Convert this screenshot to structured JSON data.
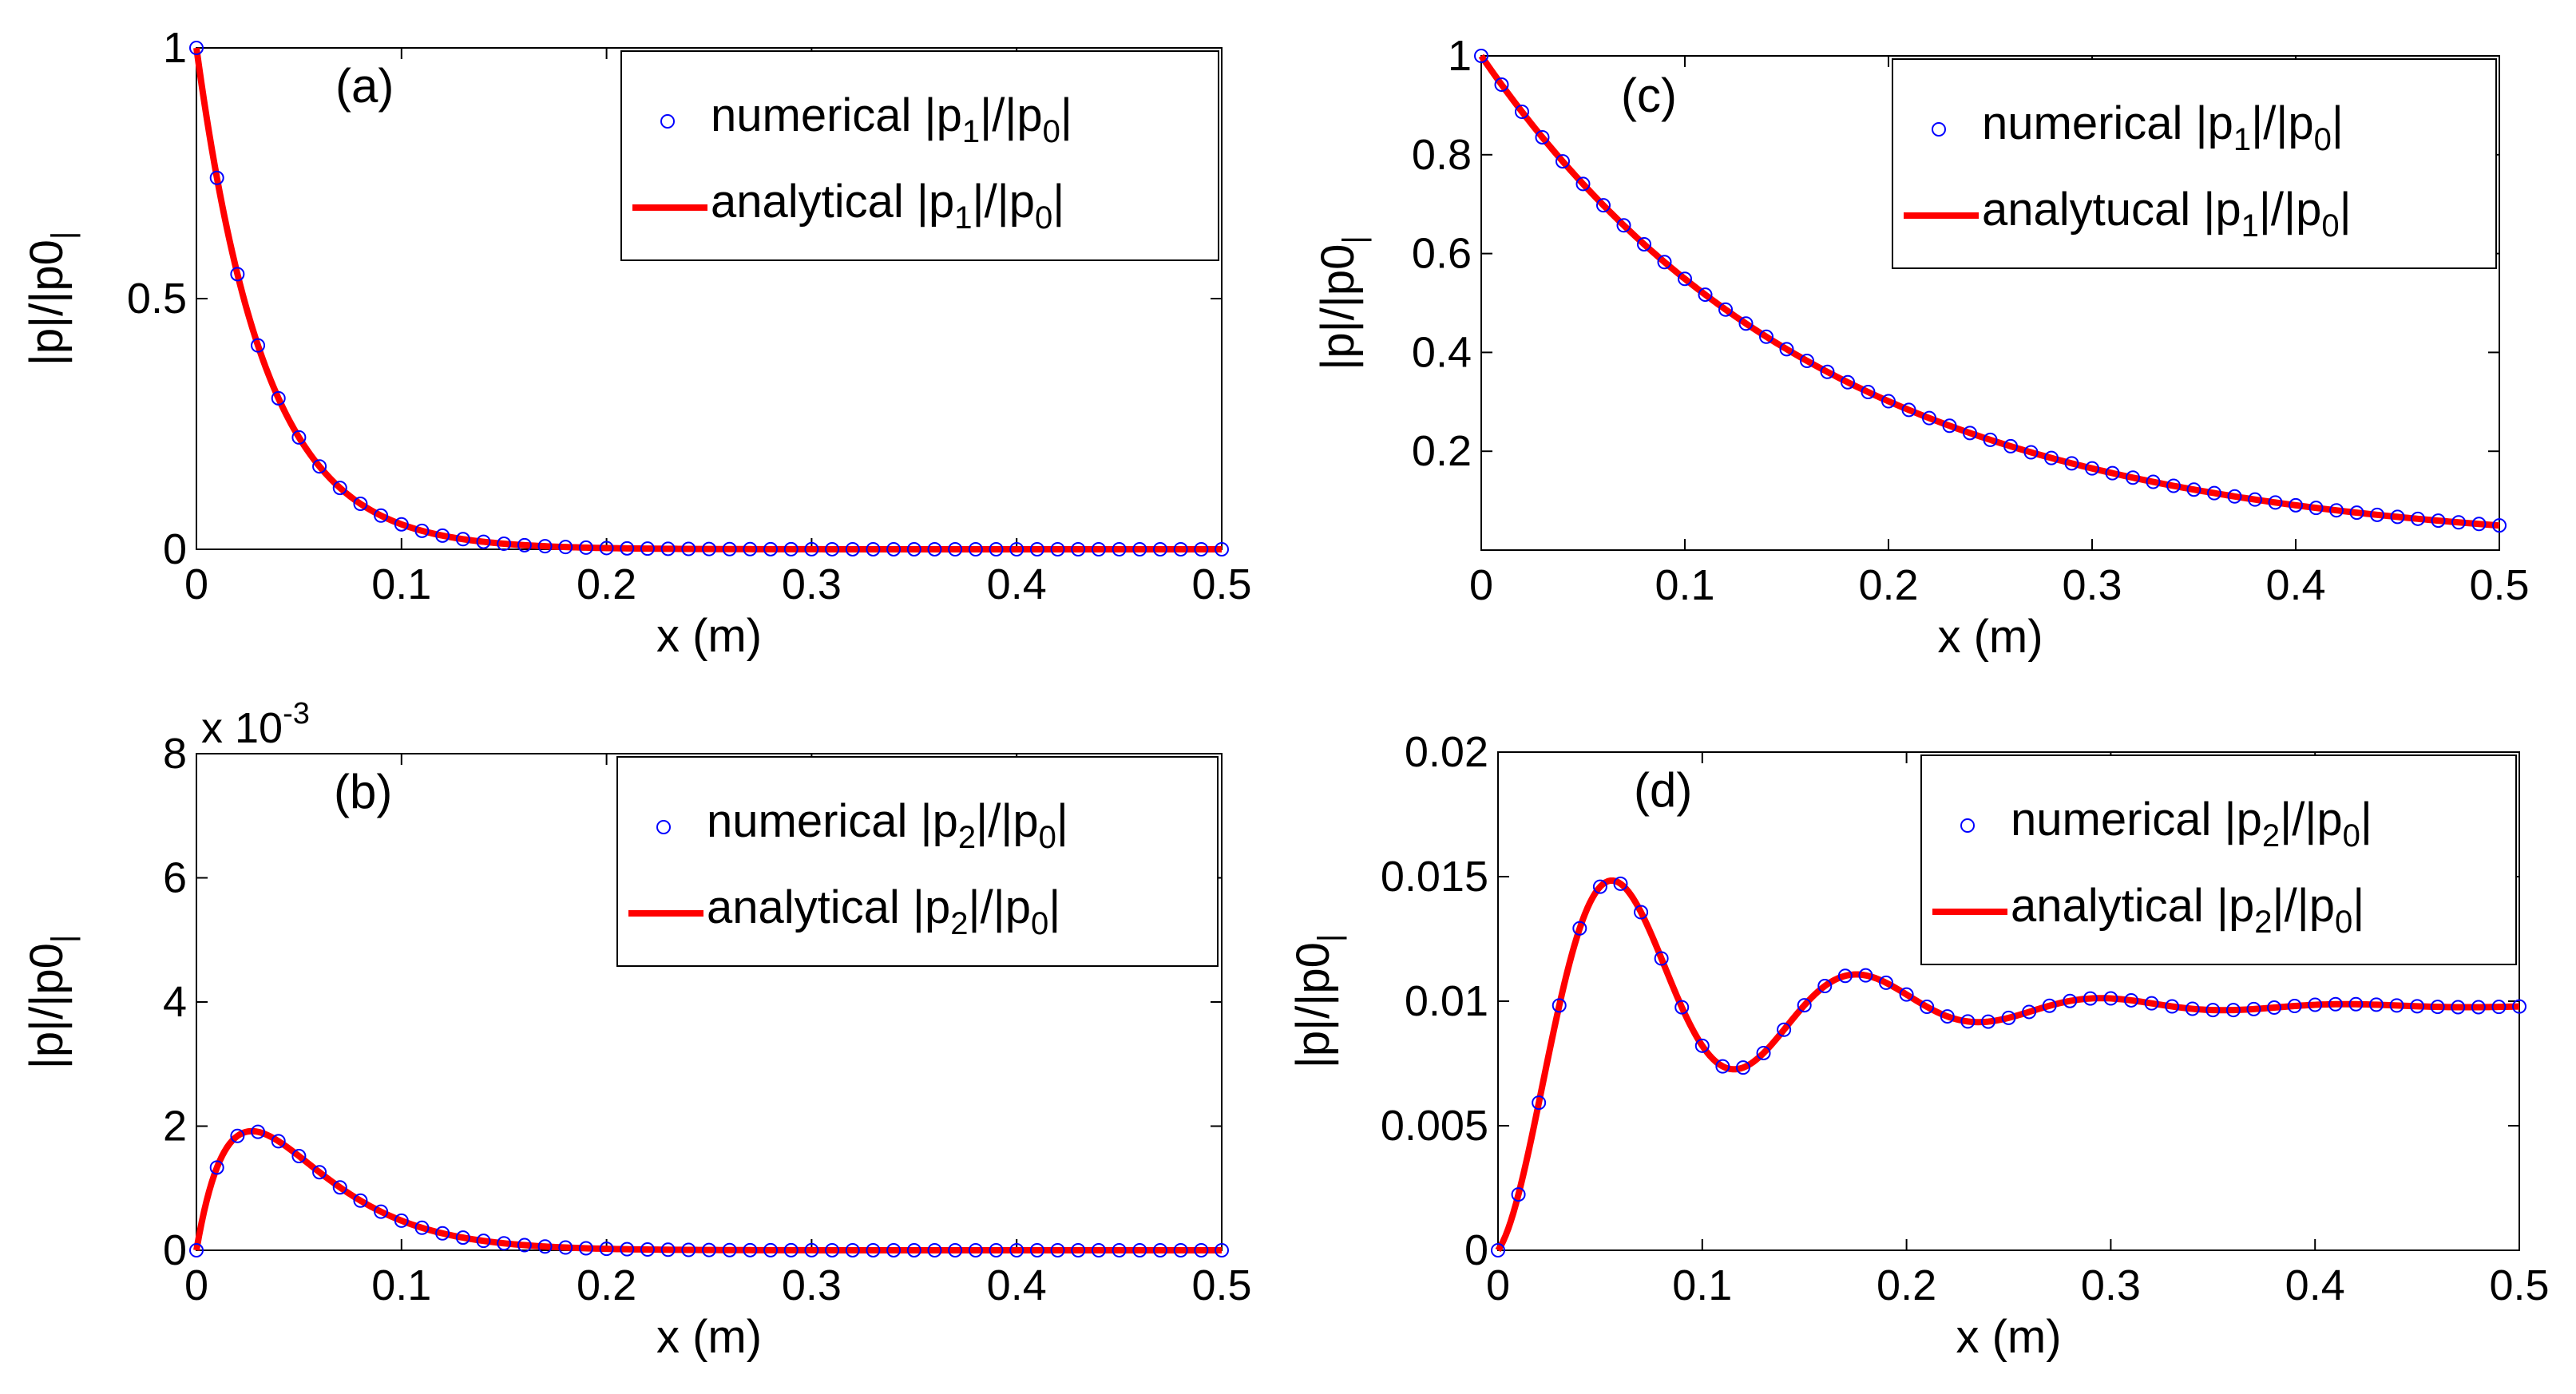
{
  "chart_data": [
    {
      "id": "a",
      "type": "line",
      "panel_label": "(a)",
      "xlabel": "x (m)",
      "ylabel": "|p|/|p0|",
      "xlim": [
        0,
        0.5
      ],
      "ylim": [
        0,
        1
      ],
      "xticks": [
        0,
        0.1,
        0.2,
        0.3,
        0.4,
        0.5
      ],
      "xtick_labels": [
        "0",
        "0.1",
        "0.2",
        "0.3",
        "0.4",
        "0.5"
      ],
      "yticks": [
        0,
        0.5,
        1
      ],
      "ytick_labels": [
        "0",
        "0.5",
        "1"
      ],
      "y_multiplier": "",
      "legend_position": "top-right",
      "model": {
        "kind": "exp",
        "k": 30.0
      },
      "x_markers": [
        0,
        0.01,
        0.02,
        0.03,
        0.04,
        0.05,
        0.06,
        0.07,
        0.08,
        0.09,
        0.1,
        0.11,
        0.12,
        0.13,
        0.14,
        0.15,
        0.16,
        0.17,
        0.18,
        0.19,
        0.2,
        0.21,
        0.22,
        0.23,
        0.24,
        0.25,
        0.26,
        0.27,
        0.28,
        0.29,
        0.3,
        0.31,
        0.32,
        0.33,
        0.34,
        0.35,
        0.36,
        0.37,
        0.38,
        0.39,
        0.4,
        0.41,
        0.42,
        0.43,
        0.44,
        0.45,
        0.46,
        0.47,
        0.48,
        0.49,
        0.5
      ],
      "series": [
        {
          "name": "numerical |p1|/|p0|",
          "label_parts": [
            "numerical |p",
            "1",
            "|/|p",
            "0",
            "|"
          ],
          "style": "markers",
          "color": "#0000ff"
        },
        {
          "name": "analytical |p1|/|p0|",
          "label_parts": [
            "analytical |p",
            "1",
            "|/|p",
            "0",
            "|"
          ],
          "style": "line",
          "color": "#ff0000"
        }
      ]
    },
    {
      "id": "b",
      "type": "line",
      "panel_label": "(b)",
      "xlabel": "x (m)",
      "ylabel": "|p|/|p0|",
      "xlim": [
        0,
        0.5
      ],
      "ylim": [
        0,
        8
      ],
      "xticks": [
        0,
        0.1,
        0.2,
        0.3,
        0.4,
        0.5
      ],
      "xtick_labels": [
        "0",
        "0.1",
        "0.2",
        "0.3",
        "0.4",
        "0.5"
      ],
      "yticks": [
        0,
        2,
        4,
        6,
        8
      ],
      "ytick_labels": [
        "0",
        "2",
        "4",
        "6",
        "8"
      ],
      "y_multiplier": "x 10",
      "y_multiplier_exp": "-3",
      "legend_position": "top-right",
      "model": {
        "kind": "bump",
        "a": 0.193,
        "k": 37.0
      },
      "x_markers": [
        0,
        0.01,
        0.02,
        0.03,
        0.04,
        0.05,
        0.06,
        0.07,
        0.08,
        0.09,
        0.1,
        0.11,
        0.12,
        0.13,
        0.14,
        0.15,
        0.16,
        0.17,
        0.18,
        0.19,
        0.2,
        0.21,
        0.22,
        0.23,
        0.24,
        0.25,
        0.26,
        0.27,
        0.28,
        0.29,
        0.3,
        0.31,
        0.32,
        0.33,
        0.34,
        0.35,
        0.36,
        0.37,
        0.38,
        0.39,
        0.4,
        0.41,
        0.42,
        0.43,
        0.44,
        0.45,
        0.46,
        0.47,
        0.48,
        0.49,
        0.5
      ],
      "series": [
        {
          "name": "numerical |p2|/|p0|",
          "label_parts": [
            "numerical |p",
            "2",
            "|/|p",
            "0",
            "|"
          ],
          "style": "markers",
          "color": "#0000ff"
        },
        {
          "name": "analytical |p2|/|p0|",
          "label_parts": [
            "analytical |p",
            "2",
            "|/|p",
            "0",
            "|"
          ],
          "style": "line",
          "color": "#ff0000"
        }
      ]
    },
    {
      "id": "c",
      "type": "line",
      "panel_label": "(c)",
      "xlabel": "x (m)",
      "ylabel": "|p|/|p0|",
      "xlim": [
        0,
        0.5
      ],
      "ylim": [
        0,
        1
      ],
      "xticks": [
        0,
        0.1,
        0.2,
        0.3,
        0.4,
        0.5
      ],
      "xtick_labels": [
        "0",
        "0.1",
        "0.2",
        "0.3",
        "0.4",
        "0.5"
      ],
      "yticks": [
        0.2,
        0.4,
        0.6,
        0.8,
        1
      ],
      "ytick_labels": [
        "0.2",
        "0.4",
        "0.6",
        "0.8",
        "1"
      ],
      "y_multiplier": "",
      "legend_position": "top-right",
      "model": {
        "kind": "exp",
        "k": 6.0
      },
      "x_markers": [
        0,
        0.01,
        0.02,
        0.03,
        0.04,
        0.05,
        0.06,
        0.07,
        0.08,
        0.09,
        0.1,
        0.11,
        0.12,
        0.13,
        0.14,
        0.15,
        0.16,
        0.17,
        0.18,
        0.19,
        0.2,
        0.21,
        0.22,
        0.23,
        0.24,
        0.25,
        0.26,
        0.27,
        0.28,
        0.29,
        0.3,
        0.31,
        0.32,
        0.33,
        0.34,
        0.35,
        0.36,
        0.37,
        0.38,
        0.39,
        0.4,
        0.41,
        0.42,
        0.43,
        0.44,
        0.45,
        0.46,
        0.47,
        0.48,
        0.49,
        0.5
      ],
      "series": [
        {
          "name": "numerical |p1|/|p0|",
          "label_parts": [
            "numerical |p",
            "1",
            "|/|p",
            "0",
            "|"
          ],
          "style": "markers",
          "color": "#0000ff"
        },
        {
          "name": "analytucal |p1|/|p0|",
          "label_parts": [
            "analytucal |p",
            "1",
            "|/|p",
            "0",
            "|"
          ],
          "style": "line",
          "color": "#ff0000"
        }
      ]
    },
    {
      "id": "d",
      "type": "line",
      "panel_label": "(d)",
      "xlabel": "x (m)",
      "ylabel": "|p|/|p0|",
      "xlim": [
        0,
        0.5
      ],
      "ylim": [
        0,
        0.02
      ],
      "xticks": [
        0,
        0.1,
        0.2,
        0.3,
        0.4,
        0.5
      ],
      "xtick_labels": [
        "0",
        "0.1",
        "0.2",
        "0.3",
        "0.4",
        "0.5"
      ],
      "yticks": [
        0,
        0.005,
        0.01,
        0.015,
        0.02
      ],
      "ytick_labels": [
        "0",
        "0.005",
        "0.01",
        "0.015",
        "0.02"
      ],
      "y_multiplier": "",
      "legend_position": "top-right",
      "model": {
        "kind": "damped",
        "c": 0.0098,
        "amp": 0.0098,
        "damp": 11.5,
        "omega": 52.5
      },
      "x_markers": [
        0,
        0.01,
        0.02,
        0.03,
        0.04,
        0.05,
        0.06,
        0.07,
        0.08,
        0.09,
        0.1,
        0.11,
        0.12,
        0.13,
        0.14,
        0.15,
        0.16,
        0.17,
        0.18,
        0.19,
        0.2,
        0.21,
        0.22,
        0.23,
        0.24,
        0.25,
        0.26,
        0.27,
        0.28,
        0.29,
        0.3,
        0.31,
        0.32,
        0.33,
        0.34,
        0.35,
        0.36,
        0.37,
        0.38,
        0.39,
        0.4,
        0.41,
        0.42,
        0.43,
        0.44,
        0.45,
        0.46,
        0.47,
        0.48,
        0.49,
        0.5
      ],
      "series": [
        {
          "name": "numerical |p2|/|p0|",
          "label_parts": [
            "numerical |p",
            "2",
            "|/|p",
            "0",
            "|"
          ],
          "style": "markers",
          "color": "#0000ff"
        },
        {
          "name": "analytical |p2|/|p0|",
          "label_parts": [
            "analytical |p",
            "2",
            "|/|p",
            "0",
            "|"
          ],
          "style": "line",
          "color": "#ff0000"
        }
      ]
    }
  ]
}
